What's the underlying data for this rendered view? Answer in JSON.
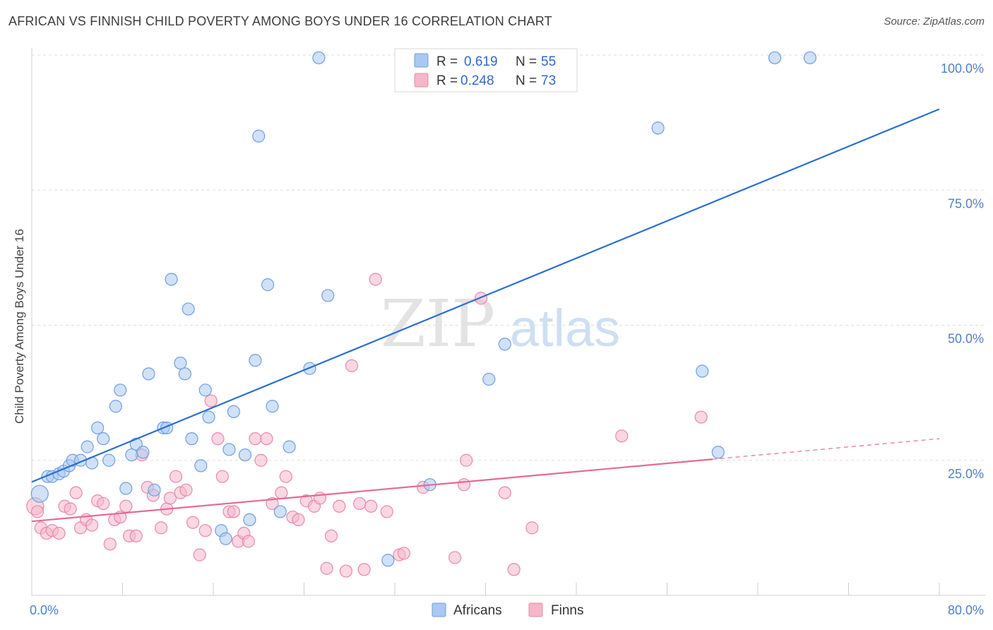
{
  "chart_data": {
    "type": "scatter",
    "title": "AFRICAN VS FINNISH CHILD POVERTY AMONG BOYS UNDER 16 CORRELATION CHART",
    "source": "Source: ZipAtlas.com",
    "ylabel": "Child Poverty Among Boys Under 16",
    "xlim": [
      0,
      80
    ],
    "ylim": [
      0,
      100
    ],
    "x_tick_labels": [
      "0.0%",
      "80.0%"
    ],
    "y_tick_labels": [
      "25.0%",
      "50.0%",
      "75.0%",
      "100.0%"
    ],
    "y_ticks": [
      25,
      50,
      75,
      100
    ],
    "grid": true,
    "watermark": {
      "part1": "ZIP",
      "part2": "atlas"
    },
    "legend": {
      "placement": "top-center",
      "rows": [
        {
          "r_label": "R = ",
          "r_value": "0.619",
          "n_label": "N = ",
          "n_value": "55"
        },
        {
          "r_label": "R = ",
          "r_value": "0.248",
          "n_label": "N = ",
          "n_value": "73"
        }
      ]
    },
    "bottom_legend": [
      "Africans",
      "Finns"
    ],
    "colors": {
      "africans_fill": "#aac8f2",
      "africans_stroke": "#6f9fde",
      "africans_line": "#2b6fd1",
      "finns_fill": "#f6b6ca",
      "finns_stroke": "#e889a8",
      "finns_line": "#e26b96"
    },
    "series": [
      {
        "name": "Africans",
        "trend": {
          "x": [
            0,
            80
          ],
          "y": [
            21.0,
            90.0
          ]
        },
        "points": [
          [
            0.7,
            18.8
          ],
          [
            1.4,
            22.0
          ],
          [
            1.8,
            22.0
          ],
          [
            2.4,
            22.5
          ],
          [
            2.8,
            23.0
          ],
          [
            3.3,
            24.0
          ],
          [
            3.6,
            25.0
          ],
          [
            4.3,
            25.0
          ],
          [
            4.9,
            27.5
          ],
          [
            5.3,
            24.5
          ],
          [
            5.8,
            31.0
          ],
          [
            6.3,
            29.0
          ],
          [
            6.8,
            25.0
          ],
          [
            7.4,
            35.0
          ],
          [
            7.8,
            38.0
          ],
          [
            8.3,
            19.8
          ],
          [
            8.8,
            26.0
          ],
          [
            9.2,
            28.0
          ],
          [
            9.8,
            26.5
          ],
          [
            10.3,
            41.0
          ],
          [
            10.8,
            19.5
          ],
          [
            11.6,
            31.0
          ],
          [
            11.9,
            31.0
          ],
          [
            12.3,
            58.5
          ],
          [
            13.1,
            43.0
          ],
          [
            13.5,
            41.0
          ],
          [
            13.8,
            53.0
          ],
          [
            14.1,
            29.0
          ],
          [
            14.9,
            24.0
          ],
          [
            15.3,
            38.0
          ],
          [
            15.6,
            33.0
          ],
          [
            16.7,
            12.0
          ],
          [
            17.1,
            10.5
          ],
          [
            17.4,
            27.0
          ],
          [
            17.8,
            34.0
          ],
          [
            18.8,
            26.0
          ],
          [
            19.2,
            14.0
          ],
          [
            19.7,
            43.5
          ],
          [
            20.0,
            85.0
          ],
          [
            20.8,
            57.5
          ],
          [
            21.2,
            35.0
          ],
          [
            21.9,
            15.5
          ],
          [
            22.7,
            27.5
          ],
          [
            24.5,
            42.0
          ],
          [
            25.3,
            99.5
          ],
          [
            26.1,
            55.5
          ],
          [
            31.4,
            6.5
          ],
          [
            35.1,
            20.5
          ],
          [
            40.3,
            40.0
          ],
          [
            41.7,
            46.5
          ],
          [
            55.2,
            86.5
          ],
          [
            59.1,
            41.5
          ],
          [
            65.5,
            99.5
          ],
          [
            68.6,
            99.5
          ],
          [
            60.5,
            26.5
          ]
        ]
      },
      {
        "name": "Finns",
        "trend": {
          "x": [
            0,
            60
          ],
          "y": [
            13.7,
            25.2
          ]
        },
        "trend_dashed": {
          "x": [
            60,
            80
          ],
          "y": [
            25.2,
            29.0
          ]
        },
        "points": [
          [
            0.3,
            16.5
          ],
          [
            0.5,
            15.5
          ],
          [
            0.8,
            12.5
          ],
          [
            1.3,
            11.5
          ],
          [
            1.8,
            12.0
          ],
          [
            2.4,
            11.5
          ],
          [
            2.9,
            16.5
          ],
          [
            3.4,
            16.0
          ],
          [
            3.9,
            19.0
          ],
          [
            4.3,
            12.5
          ],
          [
            4.8,
            14.0
          ],
          [
            5.3,
            13.0
          ],
          [
            5.8,
            17.5
          ],
          [
            6.3,
            17.0
          ],
          [
            6.9,
            9.5
          ],
          [
            7.3,
            14.0
          ],
          [
            7.8,
            14.5
          ],
          [
            8.3,
            16.5
          ],
          [
            8.6,
            11.0
          ],
          [
            9.2,
            11.0
          ],
          [
            9.7,
            26.0
          ],
          [
            10.2,
            20.0
          ],
          [
            10.7,
            18.5
          ],
          [
            11.4,
            12.5
          ],
          [
            11.9,
            16.0
          ],
          [
            12.2,
            18.0
          ],
          [
            12.7,
            22.0
          ],
          [
            13.1,
            19.0
          ],
          [
            13.6,
            19.5
          ],
          [
            14.2,
            13.5
          ],
          [
            14.8,
            7.5
          ],
          [
            15.3,
            12.0
          ],
          [
            15.8,
            36.0
          ],
          [
            16.4,
            29.0
          ],
          [
            16.8,
            22.0
          ],
          [
            17.4,
            15.5
          ],
          [
            17.8,
            15.5
          ],
          [
            18.2,
            10.0
          ],
          [
            18.7,
            11.5
          ],
          [
            19.1,
            10.0
          ],
          [
            19.7,
            29.0
          ],
          [
            20.2,
            25.0
          ],
          [
            20.7,
            29.0
          ],
          [
            21.2,
            17.0
          ],
          [
            22.0,
            19.0
          ],
          [
            22.4,
            22.0
          ],
          [
            23.0,
            14.5
          ],
          [
            23.5,
            14.0
          ],
          [
            24.2,
            17.5
          ],
          [
            24.9,
            16.5
          ],
          [
            25.4,
            18.0
          ],
          [
            26.0,
            5.0
          ],
          [
            26.4,
            11.0
          ],
          [
            27.1,
            16.5
          ],
          [
            27.7,
            4.5
          ],
          [
            28.2,
            42.5
          ],
          [
            28.9,
            17.0
          ],
          [
            29.3,
            4.8
          ],
          [
            29.9,
            16.5
          ],
          [
            30.3,
            58.5
          ],
          [
            31.3,
            15.5
          ],
          [
            32.4,
            7.5
          ],
          [
            32.8,
            7.8
          ],
          [
            34.5,
            20.0
          ],
          [
            37.3,
            7.0
          ],
          [
            38.1,
            20.5
          ],
          [
            38.3,
            25.0
          ],
          [
            39.6,
            55.0
          ],
          [
            41.7,
            19.0
          ],
          [
            42.5,
            4.8
          ],
          [
            44.1,
            12.5
          ],
          [
            52.0,
            29.5
          ],
          [
            59.0,
            33.0
          ]
        ]
      }
    ]
  }
}
